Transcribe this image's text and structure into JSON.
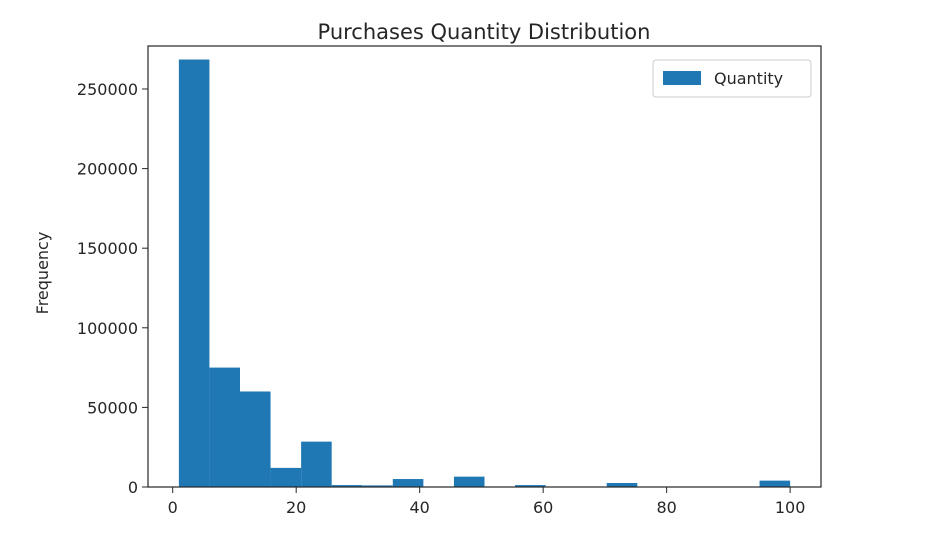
{
  "chart_data": {
    "type": "histogram",
    "title": "Purchases Quantity Distribution",
    "xlabel": "",
    "ylabel": "Frequency",
    "xlim": [
      -4,
      105
    ],
    "ylim": [
      0,
      277000
    ],
    "xticks": [
      0,
      20,
      40,
      60,
      80,
      100
    ],
    "xtick_labels": [
      "0",
      "20",
      "40",
      "60",
      "80",
      "100"
    ],
    "yticks": [
      0,
      50000,
      100000,
      150000,
      200000,
      250000
    ],
    "ytick_labels": [
      "0",
      "50000",
      "100000",
      "150000",
      "200000",
      "250000"
    ],
    "series": [
      {
        "name": "Quantity",
        "color": "#1f77b4",
        "bins": [
          {
            "start": 1.0,
            "end": 5.95,
            "count": 268500
          },
          {
            "start": 5.95,
            "end": 10.9,
            "count": 75000
          },
          {
            "start": 10.9,
            "end": 15.85,
            "count": 60000
          },
          {
            "start": 15.85,
            "end": 20.8,
            "count": 12000
          },
          {
            "start": 20.8,
            "end": 25.75,
            "count": 28500
          },
          {
            "start": 25.75,
            "end": 30.7,
            "count": 1200
          },
          {
            "start": 30.7,
            "end": 35.65,
            "count": 1000
          },
          {
            "start": 35.65,
            "end": 40.6,
            "count": 5000
          },
          {
            "start": 40.6,
            "end": 45.55,
            "count": 0
          },
          {
            "start": 45.55,
            "end": 50.5,
            "count": 6500
          },
          {
            "start": 50.5,
            "end": 55.45,
            "count": 0
          },
          {
            "start": 55.45,
            "end": 60.4,
            "count": 1200
          },
          {
            "start": 60.4,
            "end": 65.35,
            "count": 0
          },
          {
            "start": 65.35,
            "end": 70.3,
            "count": 0
          },
          {
            "start": 70.3,
            "end": 75.25,
            "count": 2500
          },
          {
            "start": 75.25,
            "end": 80.2,
            "count": 0
          },
          {
            "start": 80.2,
            "end": 85.15,
            "count": 0
          },
          {
            "start": 85.15,
            "end": 90.1,
            "count": 0
          },
          {
            "start": 90.1,
            "end": 95.05,
            "count": 0
          },
          {
            "start": 95.05,
            "end": 100.0,
            "count": 4000
          }
        ]
      }
    ],
    "legend": {
      "entries": [
        "Quantity"
      ],
      "position": "top-right"
    }
  }
}
